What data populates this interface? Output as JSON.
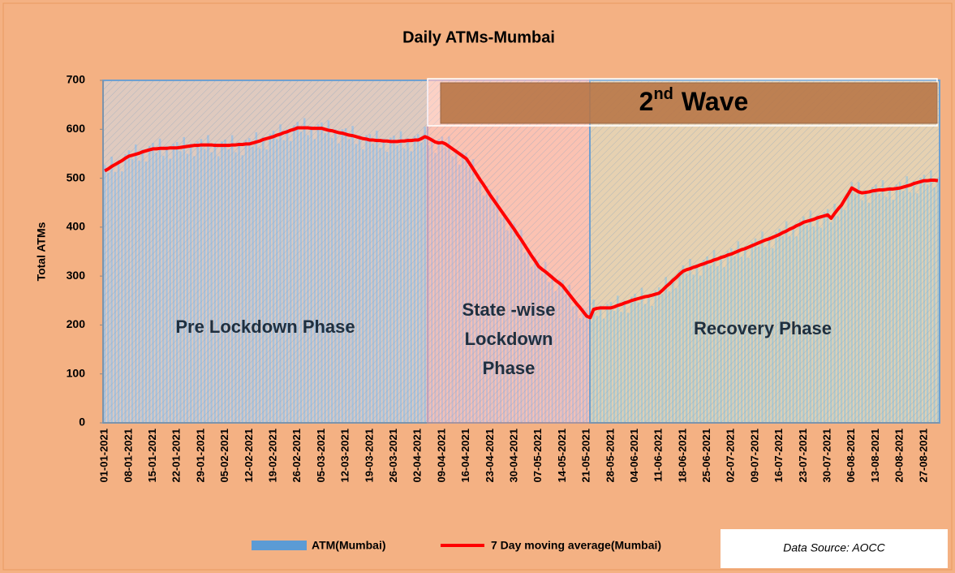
{
  "chart_data": {
    "type": "combo",
    "title": "Daily ATMs-Mumbai",
    "y_label": "Total ATMs",
    "ylim": [
      0,
      700
    ],
    "yticks": [
      0,
      100,
      200,
      300,
      400,
      500,
      600,
      700
    ],
    "annotations": {
      "pre": "Pre Lockdown Phase",
      "lockdown": [
        "State -wise",
        "Lockdown",
        "Phase"
      ],
      "recovery": "Recovery Phase",
      "wave": [
        "2",
        "nd",
        "Wave"
      ]
    },
    "source": "Data Source: AOCC",
    "categories": [
      "01-01-2021",
      null,
      null,
      null,
      null,
      null,
      null,
      "08-01-2021",
      null,
      null,
      null,
      null,
      null,
      null,
      "15-01-2021",
      null,
      null,
      null,
      null,
      null,
      null,
      "22-01-2021",
      null,
      null,
      null,
      null,
      null,
      null,
      "29-01-2021",
      null,
      null,
      null,
      null,
      null,
      null,
      "05-02-2021",
      null,
      null,
      null,
      null,
      null,
      null,
      "12-02-2021",
      null,
      null,
      null,
      null,
      null,
      null,
      "19-02-2021",
      null,
      null,
      null,
      null,
      null,
      null,
      "26-02-2021",
      null,
      null,
      null,
      null,
      null,
      null,
      "05-03-2021",
      null,
      null,
      null,
      null,
      null,
      null,
      "12-03-2021",
      null,
      null,
      null,
      null,
      null,
      null,
      "19-03-2021",
      null,
      null,
      null,
      null,
      null,
      null,
      "26-03-2021",
      null,
      null,
      null,
      null,
      null,
      null,
      "02-04-2021",
      null,
      null,
      null,
      null,
      null,
      null,
      "09-04-2021",
      null,
      null,
      null,
      null,
      null,
      null,
      "16-04-2021",
      null,
      null,
      null,
      null,
      null,
      null,
      "23-04-2021",
      null,
      null,
      null,
      null,
      null,
      null,
      "30-04-2021",
      null,
      null,
      null,
      null,
      null,
      null,
      "07-05-2021",
      null,
      null,
      null,
      null,
      null,
      null,
      "14-05-2021",
      null,
      null,
      null,
      null,
      null,
      null,
      "21-05-2021",
      null,
      null,
      null,
      null,
      null,
      null,
      "28-05-2021",
      null,
      null,
      null,
      null,
      null,
      null,
      "04-06-2021",
      null,
      null,
      null,
      null,
      null,
      null,
      "11-06-2021",
      null,
      null,
      null,
      null,
      null,
      null,
      "18-06-2021",
      null,
      null,
      null,
      null,
      null,
      null,
      "25-06-2021",
      null,
      null,
      null,
      null,
      null,
      null,
      "02-07-2021",
      null,
      null,
      null,
      null,
      null,
      null,
      "09-07-2021",
      null,
      null,
      null,
      null,
      null,
      null,
      "16-07-2021",
      null,
      null,
      null,
      null,
      null,
      null,
      "23-07-2021",
      null,
      null,
      null,
      null,
      null,
      null,
      "30-07-2021",
      null,
      null,
      null,
      null,
      null,
      null,
      "06-08-2021",
      null,
      null,
      null,
      null,
      null,
      null,
      "13-08-2021",
      null,
      null,
      null,
      null,
      null,
      null,
      "20-08-2021",
      null,
      null,
      null,
      null,
      null,
      null,
      "27-08-2021",
      null,
      null,
      null,
      null
    ],
    "series": [
      {
        "name": "ATM(Mumbai)",
        "type": "bar",
        "color": "#5b9bd5",
        "values": [
          527,
          511,
          544,
          513,
          537,
          514,
          549,
          557,
          539,
          569,
          536,
          559,
          534,
          566,
          572,
          552,
          581,
          546,
          566,
          540,
          570,
          574,
          555,
          584,
          550,
          571,
          545,
          575,
          580,
          560,
          588,
          553,
          572,
          545,
          575,
          579,
          559,
          588,
          553,
          574,
          547,
          578,
          582,
          564,
          594,
          561,
          584,
          559,
          591,
          597,
          580,
          610,
          578,
          600,
          576,
          608,
          615,
          595,
          623,
          588,
          607,
          580,
          610,
          614,
          592,
          618,
          582,
          600,
          571,
          600,
          602,
          580,
          607,
          570,
          588,
          559,
          588,
          590,
          570,
          597,
          562,
          581,
          554,
          583,
          587,
          567,
          596,
          561,
          582,
          555,
          586,
          590,
          573,
          605,
          567,
          583,
          552,
          580,
          585,
          562,
          585,
          545,
          560,
          528,
          553,
          552,
          522,
          539,
          493,
          502,
          465,
          484,
          477,
          447,
          465,
          420,
          430,
          393,
          413,
          407,
          376,
          394,
          348,
          357,
          319,
          339,
          332,
          306,
          329,
          288,
          302,
          269,
          294,
          292,
          263,
          282,
          238,
          249,
          214,
          235,
          230,
          207,
          252,
          219,
          240,
          213,
          243,
          247,
          229,
          260,
          227,
          250,
          225,
          258,
          264,
          246,
          276,
          243,
          264,
          239,
          271,
          277,
          263,
          298,
          269,
          296,
          275,
          312,
          322,
          305,
          335,
          303,
          325,
          301,
          333,
          340,
          322,
          353,
          320,
          343,
          318,
          351,
          357,
          340,
          371,
          339,
          361,
          337,
          370,
          377,
          360,
          391,
          359,
          381,
          357,
          390,
          397,
          381,
          412,
          381,
          404,
          381,
          414,
          422,
          404,
          434,
          401,
          424,
          399,
          431,
          437,
          410,
          448,
          422,
          450,
          435,
          476,
          492,
          468,
          492,
          455,
          476,
          450,
          482,
          487,
          468,
          496,
          462,
          483,
          456,
          487,
          492,
          474,
          504,
          471,
          494,
          469,
          501,
          507,
          487,
          516,
          481,
          500
        ]
      },
      {
        "name": "7 Day moving average(Mumbai)",
        "type": "line",
        "color": "#ff0000",
        "values": [
          515,
          519,
          524,
          528,
          532,
          536,
          541,
          545,
          547,
          549,
          551,
          554,
          556,
          558,
          560,
          560,
          561,
          561,
          561,
          562,
          562,
          562,
          563,
          564,
          565,
          566,
          567,
          567,
          568,
          568,
          568,
          568,
          567,
          567,
          567,
          567,
          567,
          568,
          568,
          569,
          569,
          570,
          570,
          572,
          574,
          576,
          579,
          581,
          583,
          585,
          588,
          590,
          593,
          595,
          598,
          600,
          603,
          603,
          603,
          603,
          602,
          602,
          602,
          602,
          600,
          598,
          597,
          595,
          593,
          592,
          590,
          588,
          587,
          585,
          583,
          581,
          580,
          578,
          578,
          577,
          577,
          576,
          576,
          575,
          575,
          575,
          576,
          576,
          577,
          577,
          578,
          578,
          581,
          585,
          582,
          578,
          574,
          572,
          573,
          570,
          565,
          560,
          555,
          550,
          545,
          540,
          530,
          519,
          508,
          497,
          487,
          476,
          465,
          455,
          445,
          435,
          425,
          415,
          405,
          395,
          384,
          374,
          363,
          352,
          341,
          331,
          320,
          314,
          309,
          303,
          297,
          291,
          286,
          280,
          271,
          262,
          253,
          244,
          236,
          227,
          218,
          215,
          232,
          234,
          235,
          235,
          235,
          235,
          237,
          240,
          242,
          245,
          247,
          250,
          252,
          254,
          256,
          258,
          259,
          261,
          263,
          265,
          271,
          278,
          284,
          291,
          297,
          304,
          310,
          313,
          315,
          318,
          320,
          323,
          325,
          328,
          330,
          333,
          335,
          338,
          340,
          343,
          345,
          348,
          351,
          354,
          356,
          359,
          362,
          365,
          368,
          371,
          374,
          376,
          379,
          382,
          385,
          389,
          392,
          396,
          399,
          403,
          406,
          410,
          412,
          414,
          416,
          419,
          421,
          423,
          425,
          418,
          428,
          437,
          445,
          457,
          468,
          480,
          476,
          472,
          470,
          471,
          472,
          474,
          475,
          476,
          476,
          477,
          478,
          478,
          479,
          480,
          482,
          484,
          486,
          489,
          491,
          493,
          495,
          495,
          496,
          496,
          495
        ]
      }
    ]
  }
}
